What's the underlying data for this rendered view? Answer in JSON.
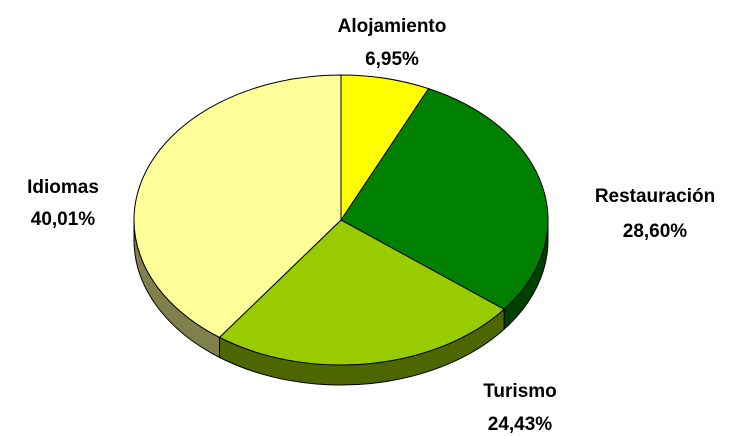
{
  "chart_data": {
    "type": "pie",
    "categories": [
      "Alojamiento",
      "Restauración",
      "Turismo",
      "Idiomas"
    ],
    "values": [
      6.95,
      28.6,
      24.43,
      40.01
    ],
    "value_labels": [
      "6,95%",
      "28,60%",
      "24,43%",
      "40,01%"
    ],
    "colors": [
      "#ffff00",
      "#008000",
      "#99cc00",
      "#ffff99"
    ]
  }
}
